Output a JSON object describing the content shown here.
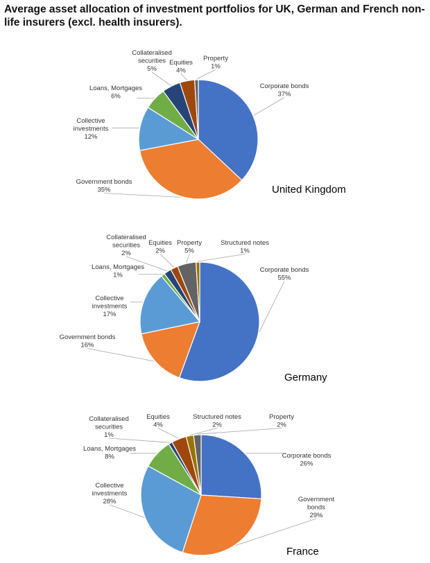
{
  "title": "Average asset allocation of investment portfolios for UK, German and French non-life insurers (excl. health insurers).",
  "colors": {
    "Corporate bonds": "#4472C4",
    "Government bonds": "#ED7D31",
    "Collective investments": "#5B9BD5",
    "Loans, Mortgages": "#70AD47",
    "Collateralised securities": "#264478",
    "Equities": "#9E480E",
    "Property": "#636363",
    "Structured notes": "#997300"
  },
  "chart_data": [
    {
      "type": "pie",
      "title": "United Kingdom",
      "slices": [
        {
          "label": "Corporate bonds",
          "value": 37,
          "value_text": "37%"
        },
        {
          "label": "Government bonds",
          "value": 35,
          "value_text": "35%"
        },
        {
          "label": "Collective investments",
          "value": 12,
          "value_text": "12%"
        },
        {
          "label": "Loans, Mortgages",
          "value": 6,
          "value_text": "6%"
        },
        {
          "label": "Collateralised securities",
          "value": 5,
          "value_text": "5%"
        },
        {
          "label": "Equities",
          "value": 4,
          "value_text": "4%"
        },
        {
          "label": "Property",
          "value": 1,
          "value_text": "1%"
        }
      ]
    },
    {
      "type": "pie",
      "title": "Germany",
      "slices": [
        {
          "label": "Corporate bonds",
          "value": 55,
          "value_text": "55%"
        },
        {
          "label": "Government bonds",
          "value": 16,
          "value_text": "16%"
        },
        {
          "label": "Collective investments",
          "value": 17,
          "value_text": "17%"
        },
        {
          "label": "Loans, Mortgages",
          "value": 1,
          "value_text": "1%"
        },
        {
          "label": "Collateralised securities",
          "value": 2,
          "value_text": "2%"
        },
        {
          "label": "Equities",
          "value": 2,
          "value_text": "2%"
        },
        {
          "label": "Property",
          "value": 5,
          "value_text": "5%"
        },
        {
          "label": "Structured notes",
          "value": 1,
          "value_text": "1%"
        }
      ]
    },
    {
      "type": "pie",
      "title": "France",
      "slices": [
        {
          "label": "Corporate bonds",
          "value": 26,
          "value_text": "26%"
        },
        {
          "label": "Government bonds",
          "value": 29,
          "value_text": "29%"
        },
        {
          "label": "Collective investments",
          "value": 28,
          "value_text": "28%"
        },
        {
          "label": "Loans, Mortgages",
          "value": 8,
          "value_text": "8%"
        },
        {
          "label": "Collateralised securities",
          "value": 1,
          "value_text": "1%"
        },
        {
          "label": "Equities",
          "value": 4,
          "value_text": "4%"
        },
        {
          "label": "Structured notes",
          "value": 2,
          "value_text": "2%"
        },
        {
          "label": "Property",
          "value": 2,
          "value_text": "2%"
        }
      ]
    }
  ]
}
